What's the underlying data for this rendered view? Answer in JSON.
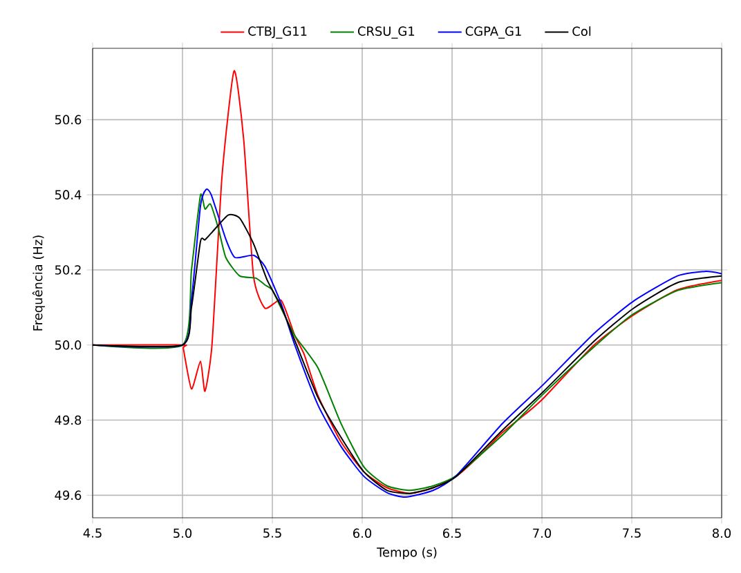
{
  "chart_data": {
    "type": "line",
    "xlabel": "Tempo (s)",
    "ylabel": "Frequência (Hz)",
    "xlim": [
      4.5,
      8.0
    ],
    "ylim": [
      49.54,
      50.79
    ],
    "xticks": [
      {
        "value": 4.5,
        "label": "4.5"
      },
      {
        "value": 5.0,
        "label": "5.0"
      },
      {
        "value": 5.5,
        "label": "5.5"
      },
      {
        "value": 6.0,
        "label": "6.0"
      },
      {
        "value": 6.5,
        "label": "6.5"
      },
      {
        "value": 7.0,
        "label": "7.0"
      },
      {
        "value": 7.5,
        "label": "7.5"
      },
      {
        "value": 8.0,
        "label": "8.0"
      }
    ],
    "yticks": [
      {
        "value": 49.6,
        "label": "49.6"
      },
      {
        "value": 49.8,
        "label": "49.8"
      },
      {
        "value": 50.0,
        "label": "50.0"
      },
      {
        "value": 50.2,
        "label": "50.2"
      },
      {
        "value": 50.4,
        "label": "50.4"
      },
      {
        "value": 50.6,
        "label": "50.6"
      }
    ],
    "grid": true,
    "legend": "top",
    "line_style": "solid",
    "marker": "none",
    "series": [
      {
        "name": "CTBJ_G11",
        "color": "#ff0000",
        "x": [
          4.5,
          5.0,
          5.005,
          5.05,
          5.1,
          5.125,
          5.164,
          5.22,
          5.287,
          5.34,
          5.395,
          5.459,
          5.549,
          5.625,
          5.677,
          5.754,
          5.882,
          6.01,
          6.138,
          6.267,
          6.395,
          6.523,
          6.652,
          6.78,
          6.908,
          7.01,
          7.29,
          7.51,
          7.754,
          8.0
        ],
        "values": [
          50.0,
          50.0,
          49.99,
          49.883,
          49.957,
          49.877,
          50.0,
          50.45,
          50.73,
          50.55,
          50.184,
          50.098,
          50.119,
          50.025,
          49.975,
          49.865,
          49.742,
          49.662,
          49.62,
          49.605,
          49.62,
          49.65,
          49.705,
          49.767,
          49.816,
          49.859,
          50.0,
          50.08,
          50.147,
          50.172
        ]
      },
      {
        "name": "CRSU_G1",
        "color": "#008000",
        "x": [
          4.5,
          5.0,
          5.05,
          5.1,
          5.125,
          5.156,
          5.2,
          5.241,
          5.318,
          5.408,
          5.459,
          5.498,
          5.549,
          5.625,
          5.754,
          5.882,
          6.01,
          6.138,
          6.267,
          6.395,
          6.523,
          6.78,
          7.0,
          7.29,
          7.5,
          7.754,
          8.0
        ],
        "values": [
          50.0,
          50.0,
          50.2,
          50.399,
          50.362,
          50.375,
          50.31,
          50.233,
          50.184,
          50.178,
          50.16,
          50.147,
          50.098,
          50.025,
          49.939,
          49.791,
          49.675,
          49.625,
          49.613,
          49.625,
          49.652,
          49.76,
          49.866,
          49.995,
          50.08,
          50.145,
          50.166
        ]
      },
      {
        "name": "CGPA_G1",
        "color": "#0000ff",
        "x": [
          4.5,
          5.0,
          5.05,
          5.1,
          5.131,
          5.16,
          5.241,
          5.292,
          5.395,
          5.459,
          5.549,
          5.625,
          5.754,
          5.882,
          6.01,
          6.138,
          6.241,
          6.395,
          6.523,
          6.78,
          7.01,
          7.29,
          7.51,
          7.754,
          7.908,
          8.0
        ],
        "values": [
          50.0,
          50.0,
          50.12,
          50.37,
          50.414,
          50.4,
          50.282,
          50.233,
          50.239,
          50.209,
          50.11,
          50.0,
          49.84,
          49.73,
          49.65,
          49.607,
          49.595,
          49.613,
          49.652,
          49.791,
          49.896,
          50.031,
          50.117,
          50.184,
          50.196,
          50.19
        ]
      },
      {
        "name": "Col",
        "color": "#000000",
        "x": [
          4.5,
          5.0,
          5.05,
          5.1,
          5.125,
          5.164,
          5.254,
          5.318,
          5.395,
          5.472,
          5.549,
          5.625,
          5.754,
          5.882,
          6.01,
          6.138,
          6.267,
          6.395,
          6.523,
          6.78,
          7.01,
          7.29,
          7.51,
          7.754,
          8.0
        ],
        "values": [
          50.0,
          50.0,
          50.1,
          50.276,
          50.28,
          50.3,
          50.346,
          50.338,
          50.27,
          50.172,
          50.103,
          50.012,
          49.86,
          49.754,
          49.662,
          49.613,
          49.605,
          49.62,
          49.65,
          49.773,
          49.877,
          50.01,
          50.098,
          50.166,
          50.184
        ]
      }
    ]
  }
}
